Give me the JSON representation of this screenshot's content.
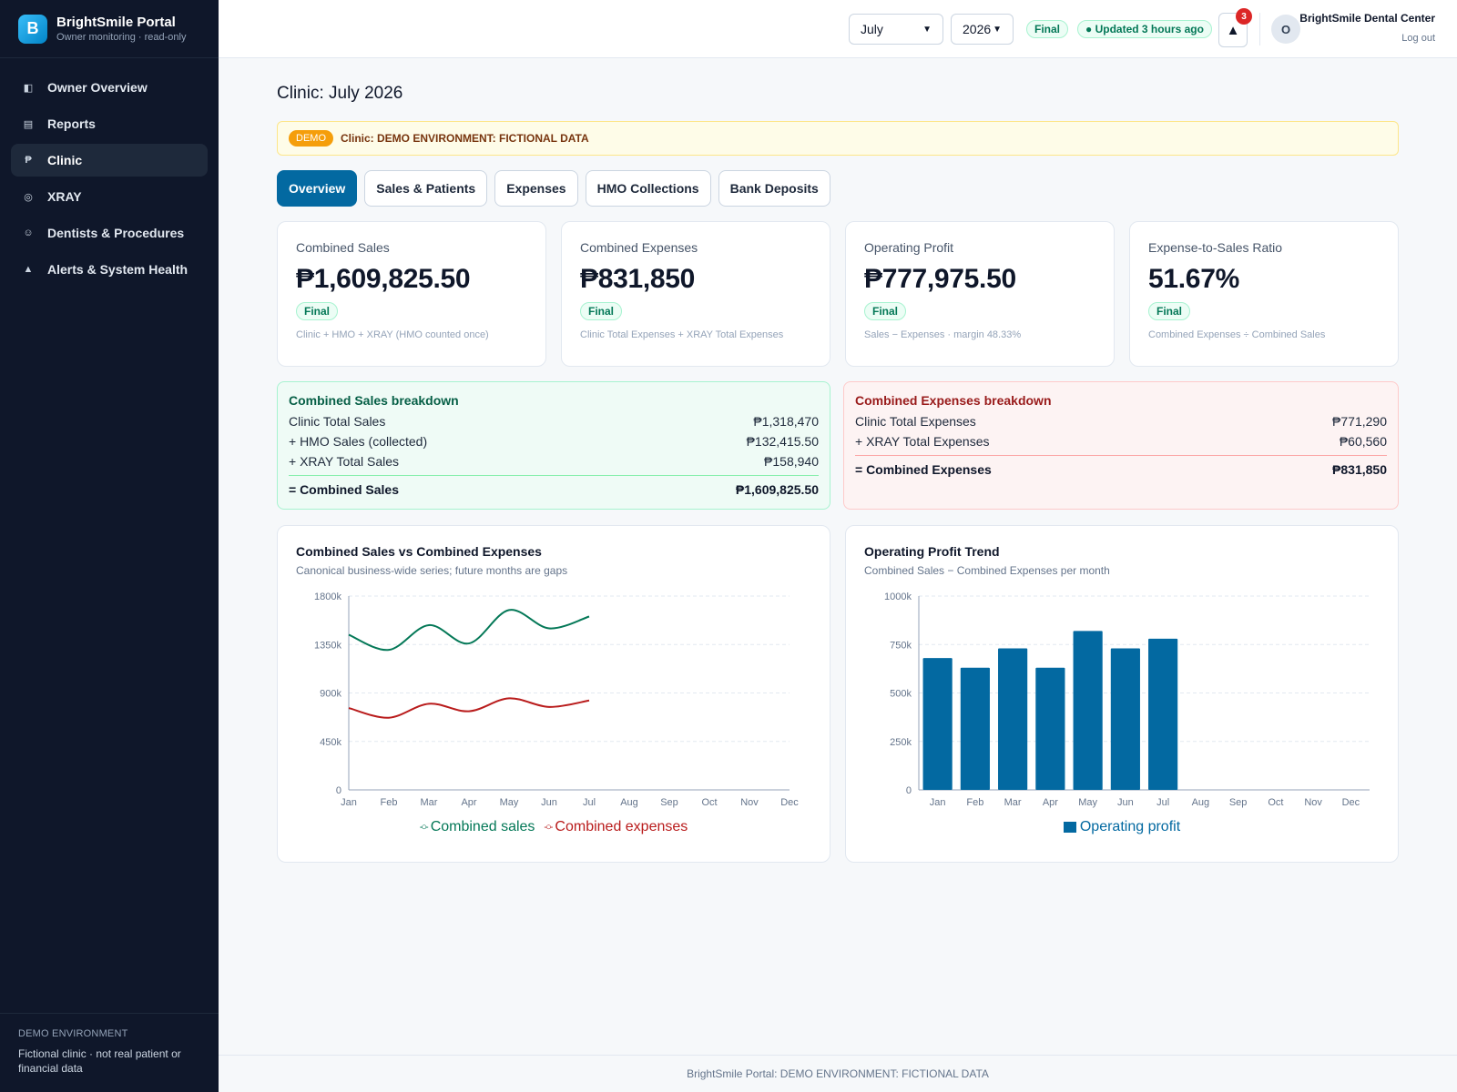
{
  "app": {
    "name": "BrightSmile Portal",
    "subtitle": "Owner monitoring · read-only",
    "logo_letter": "B"
  },
  "sidebar": {
    "items": [
      {
        "label": "Owner Overview",
        "icon": "overview-icon",
        "glyph": "◧",
        "active": false
      },
      {
        "label": "Reports",
        "icon": "reports-icon",
        "glyph": "▤",
        "active": false
      },
      {
        "label": "Clinic",
        "icon": "peso-icon",
        "glyph": "₱",
        "active": true
      },
      {
        "label": "XRAY",
        "icon": "xray-icon",
        "glyph": "◎",
        "active": false
      },
      {
        "label": "Dentists & Procedures",
        "icon": "dentist-icon",
        "glyph": "☺",
        "active": false
      },
      {
        "label": "Alerts & System Health",
        "icon": "alert-icon",
        "glyph": "▲",
        "active": false
      }
    ],
    "footer_title": "DEMO ENVIRONMENT",
    "footer_text": "Fictional clinic · not real patient or financial data"
  },
  "header": {
    "month": "July",
    "year": "2026",
    "status": "Final",
    "updated": "● Updated 3 hours ago",
    "notification_count": "3",
    "avatar_letter": "O",
    "user_name": "BrightSmile Dental Center",
    "logout": "Log out"
  },
  "page": {
    "title": "Clinic: July 2026",
    "banner_pill": "DEMO",
    "banner_text": "Clinic: DEMO ENVIRONMENT: FICTIONAL DATA"
  },
  "tabs": [
    {
      "label": "Overview",
      "active": true
    },
    {
      "label": "Sales & Patients",
      "active": false
    },
    {
      "label": "Expenses",
      "active": false
    },
    {
      "label": "HMO Collections",
      "active": false
    },
    {
      "label": "Bank Deposits",
      "active": false
    }
  ],
  "kpis": [
    {
      "label": "Combined Sales",
      "value": "₱1,609,825.50",
      "status": "Final",
      "note": "Clinic + HMO + XRAY (HMO counted once)"
    },
    {
      "label": "Combined Expenses",
      "value": "₱831,850",
      "status": "Final",
      "note": "Clinic Total Expenses + XRAY Total Expenses"
    },
    {
      "label": "Operating Profit",
      "value": "₱777,975.50",
      "status": "Final",
      "note": "Sales − Expenses · margin 48.33%"
    },
    {
      "label": "Expense-to-Sales Ratio",
      "value": "51.67%",
      "status": "Final",
      "note": "Combined Expenses ÷ Combined Sales"
    }
  ],
  "sales_breakdown": {
    "title": "Combined Sales breakdown",
    "rows": [
      {
        "label": "Clinic Total Sales",
        "value": "₱1,318,470"
      },
      {
        "label": "+ HMO Sales (collected)",
        "value": "₱132,415.50"
      },
      {
        "label": "+ XRAY Total Sales",
        "value": "₱158,940"
      }
    ],
    "total_label": "= Combined Sales",
    "total_value": "₱1,609,825.50"
  },
  "expense_breakdown": {
    "title": "Combined Expenses breakdown",
    "rows": [
      {
        "label": "Clinic Total Expenses",
        "value": "₱771,290"
      },
      {
        "label": "+ XRAY Total Expenses",
        "value": "₱60,560"
      }
    ],
    "total_label": "= Combined Expenses",
    "total_value": "₱831,850"
  },
  "charts": {
    "line_title": "Combined Sales vs Combined Expenses",
    "line_subtitle": "Canonical business-wide series; future months are gaps",
    "bar_title": "Operating Profit Trend",
    "bar_subtitle": "Combined Sales − Combined Expenses per month"
  },
  "chart_data": [
    {
      "type": "line",
      "title": "Combined Sales vs Combined Expenses",
      "subtitle": "Canonical business-wide series; future months are gaps",
      "categories": [
        "Jan",
        "Feb",
        "Mar",
        "Apr",
        "May",
        "Jun",
        "Jul",
        "Aug",
        "Sep",
        "Oct",
        "Nov",
        "Dec"
      ],
      "y_ticks": [
        "0",
        "450k",
        "900k",
        "1350k",
        "1800k"
      ],
      "ylim": [
        0,
        1800000
      ],
      "grid": true,
      "legend": "bottom",
      "series": [
        {
          "name": "Combined sales",
          "color": "#047857",
          "values": [
            1440000,
            1300000,
            1530000,
            1360000,
            1670000,
            1500000,
            1610000,
            null,
            null,
            null,
            null,
            null
          ]
        },
        {
          "name": "Combined expenses",
          "color": "#b91c1c",
          "values": [
            760000,
            670000,
            800000,
            730000,
            850000,
            770000,
            830000,
            null,
            null,
            null,
            null,
            null
          ]
        }
      ]
    },
    {
      "type": "bar",
      "title": "Operating Profit Trend",
      "subtitle": "Combined Sales − Combined Expenses per month",
      "categories": [
        "Jan",
        "Feb",
        "Mar",
        "Apr",
        "May",
        "Jun",
        "Jul",
        "Aug",
        "Sep",
        "Oct",
        "Nov",
        "Dec"
      ],
      "y_ticks": [
        "0",
        "250k",
        "500k",
        "750k",
        "1000k"
      ],
      "ylim": [
        0,
        1000000
      ],
      "grid": true,
      "legend": "bottom",
      "series": [
        {
          "name": "Operating profit",
          "color": "#0369a1",
          "values": [
            680000,
            630000,
            730000,
            630000,
            820000,
            730000,
            780000,
            null,
            null,
            null,
            null,
            null
          ]
        }
      ]
    }
  ],
  "footer": {
    "text": "BrightSmile Portal: DEMO ENVIRONMENT: FICTIONAL DATA"
  }
}
